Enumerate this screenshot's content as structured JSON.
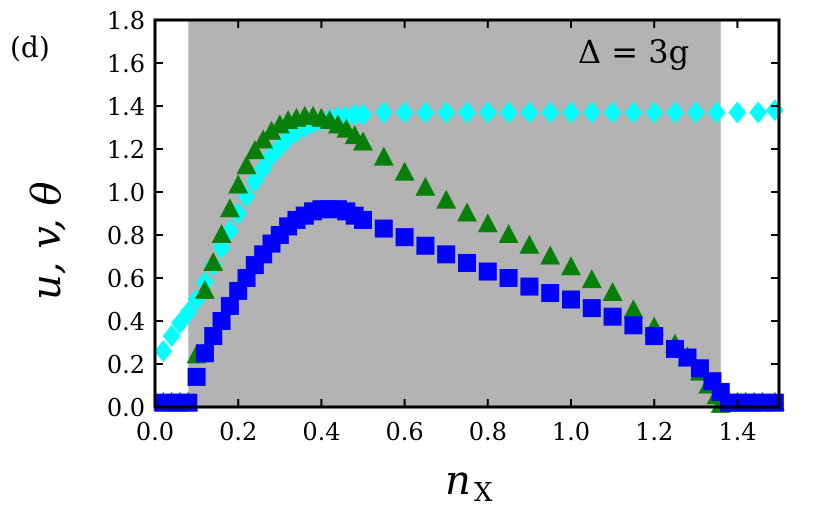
{
  "chart_data": {
    "type": "scatter",
    "panel_label": "(d)",
    "annotation": "Δ = 3g",
    "xlabel": "n",
    "xlabel_sub": "X",
    "ylabel": "u, v, θ",
    "xlim": [
      0.0,
      1.5
    ],
    "ylim": [
      0.0,
      1.8
    ],
    "xticks": [
      0.0,
      0.2,
      0.4,
      0.6,
      0.8,
      1.0,
      1.2,
      1.4
    ],
    "yticks": [
      0.0,
      0.2,
      0.4,
      0.6,
      0.8,
      1.0,
      1.2,
      1.4,
      1.6,
      1.8
    ],
    "xtick_labels": [
      "0.0",
      "0.2",
      "0.4",
      "0.6",
      "0.8",
      "1.0",
      "1.2",
      "1.4"
    ],
    "ytick_labels": [
      "0.0",
      "0.2",
      "0.4",
      "0.6",
      "0.8",
      "1.0",
      "1.2",
      "1.4",
      "1.6",
      "1.8"
    ],
    "shaded_region": {
      "x": [
        0.08,
        1.36
      ],
      "color": "#b3b3b3"
    },
    "grid": false,
    "series": [
      {
        "marker": "diamond",
        "color": "#00ffff",
        "x": [
          0.02,
          0.04,
          0.06,
          0.08,
          0.1,
          0.12,
          0.14,
          0.16,
          0.18,
          0.2,
          0.22,
          0.24,
          0.26,
          0.28,
          0.3,
          0.32,
          0.34,
          0.36,
          0.38,
          0.4,
          0.42,
          0.44,
          0.46,
          0.48,
          0.5,
          0.55,
          0.6,
          0.65,
          0.7,
          0.75,
          0.8,
          0.85,
          0.9,
          0.95,
          1.0,
          1.05,
          1.1,
          1.15,
          1.2,
          1.25,
          1.3,
          1.35,
          1.4,
          1.45,
          1.49
        ],
        "y": [
          0.26,
          0.33,
          0.39,
          0.44,
          0.5,
          0.58,
          0.66,
          0.74,
          0.82,
          0.9,
          0.98,
          1.05,
          1.11,
          1.17,
          1.21,
          1.25,
          1.28,
          1.3,
          1.32,
          1.33,
          1.34,
          1.35,
          1.35,
          1.36,
          1.36,
          1.37,
          1.37,
          1.37,
          1.37,
          1.37,
          1.37,
          1.37,
          1.37,
          1.37,
          1.37,
          1.37,
          1.37,
          1.37,
          1.37,
          1.37,
          1.37,
          1.37,
          1.37,
          1.37,
          1.38
        ]
      },
      {
        "marker": "triangle",
        "color": "#087f08",
        "x": [
          0.02,
          0.04,
          0.06,
          0.08,
          0.1,
          0.12,
          0.14,
          0.16,
          0.18,
          0.2,
          0.22,
          0.24,
          0.26,
          0.28,
          0.3,
          0.32,
          0.34,
          0.36,
          0.38,
          0.4,
          0.42,
          0.44,
          0.46,
          0.48,
          0.5,
          0.55,
          0.6,
          0.65,
          0.7,
          0.75,
          0.8,
          0.85,
          0.9,
          0.95,
          1.0,
          1.05,
          1.1,
          1.15,
          1.2,
          1.25,
          1.28,
          1.31,
          1.33,
          1.35,
          1.36,
          1.38,
          1.4,
          1.42,
          1.44,
          1.46,
          1.49
        ],
        "y": [
          0.02,
          0.02,
          0.02,
          0.02,
          0.24,
          0.54,
          0.67,
          0.8,
          0.92,
          1.03,
          1.12,
          1.19,
          1.24,
          1.28,
          1.31,
          1.33,
          1.34,
          1.35,
          1.35,
          1.34,
          1.33,
          1.31,
          1.29,
          1.26,
          1.23,
          1.16,
          1.09,
          1.02,
          0.96,
          0.9,
          0.85,
          0.8,
          0.75,
          0.7,
          0.65,
          0.59,
          0.53,
          0.45,
          0.37,
          0.29,
          0.23,
          0.16,
          0.1,
          0.05,
          0.01,
          0.02,
          0.02,
          0.02,
          0.02,
          0.02,
          0.02
        ]
      },
      {
        "marker": "square",
        "color": "#0000ff",
        "x": [
          0.02,
          0.04,
          0.06,
          0.08,
          0.1,
          0.12,
          0.14,
          0.16,
          0.18,
          0.2,
          0.22,
          0.24,
          0.26,
          0.28,
          0.3,
          0.32,
          0.34,
          0.36,
          0.38,
          0.4,
          0.42,
          0.44,
          0.46,
          0.48,
          0.5,
          0.55,
          0.6,
          0.65,
          0.7,
          0.75,
          0.8,
          0.85,
          0.9,
          0.95,
          1.0,
          1.05,
          1.1,
          1.15,
          1.2,
          1.25,
          1.28,
          1.31,
          1.34,
          1.36,
          1.38,
          1.4,
          1.42,
          1.44,
          1.46,
          1.49
        ],
        "y": [
          0.02,
          0.02,
          0.02,
          0.02,
          0.14,
          0.25,
          0.33,
          0.4,
          0.47,
          0.54,
          0.6,
          0.66,
          0.71,
          0.76,
          0.8,
          0.84,
          0.87,
          0.89,
          0.91,
          0.92,
          0.92,
          0.92,
          0.91,
          0.89,
          0.87,
          0.83,
          0.79,
          0.75,
          0.71,
          0.67,
          0.63,
          0.6,
          0.56,
          0.53,
          0.5,
          0.46,
          0.42,
          0.38,
          0.33,
          0.27,
          0.23,
          0.18,
          0.12,
          0.07,
          0.02,
          0.02,
          0.02,
          0.02,
          0.02,
          0.02
        ]
      }
    ]
  }
}
